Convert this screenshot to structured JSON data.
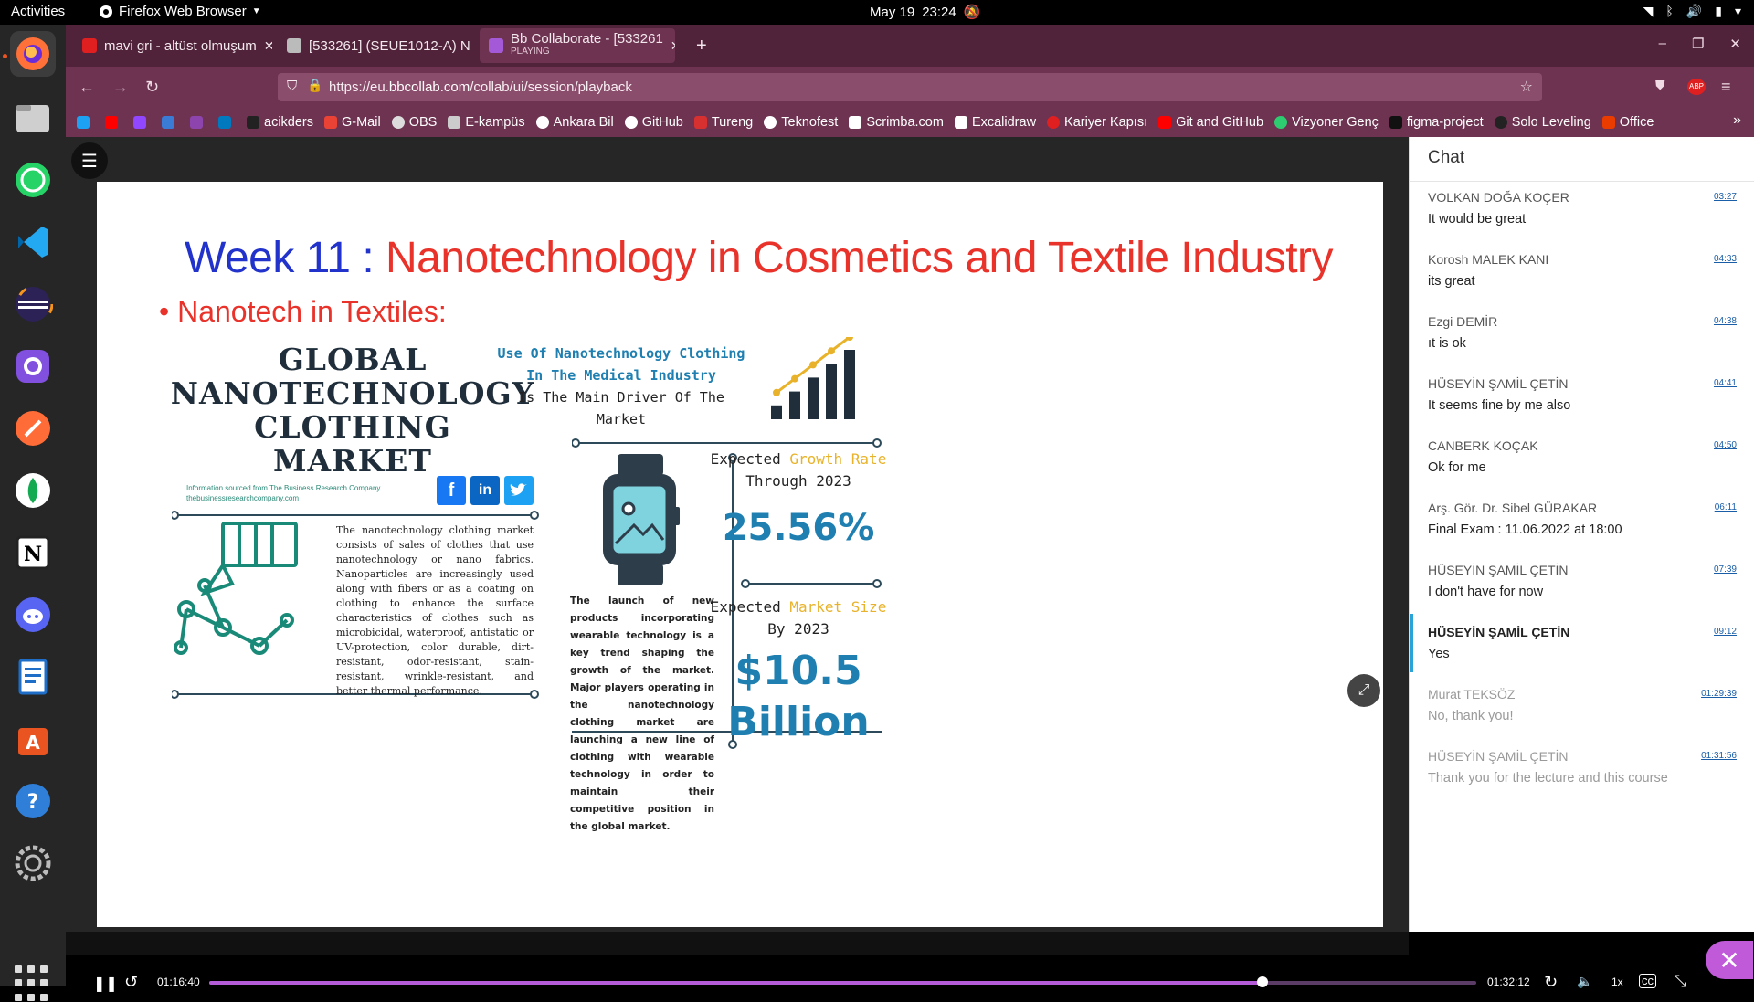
{
  "system": {
    "activities": "Activities",
    "browser_name": "Firefox Web Browser",
    "date": "May 19",
    "time": "23:24"
  },
  "tabs": [
    {
      "title": "mavi gri - altüst olmuşum",
      "color": "#e02020"
    },
    {
      "title": "[533261] (SEUE1012-A) N",
      "color": "#bbbbbb"
    },
    {
      "title": "Bb Collaborate - [533261",
      "subtitle": "PLAYING",
      "color": "#a45ad8"
    }
  ],
  "new_tab": "+",
  "url": {
    "prefix": "https://eu.",
    "domain": "bbcollab.com",
    "path": "/collab/ui/session/playback"
  },
  "bookmarks": [
    {
      "label": "",
      "color": "#1da1f2"
    },
    {
      "label": "",
      "color": "#ff0000"
    },
    {
      "label": "",
      "color": "#9146ff"
    },
    {
      "label": "",
      "color": "#3a7bd5"
    },
    {
      "label": "",
      "color": "#8e44ad"
    },
    {
      "label": "",
      "color": "#0079bf"
    },
    {
      "label": "acikders",
      "color": "#222222"
    },
    {
      "label": "G-Mail",
      "color": "#ea4335"
    },
    {
      "label": "OBS",
      "color": "#dddddd"
    },
    {
      "label": "E-kampüs",
      "color": "#cccccc"
    },
    {
      "label": "Ankara Bil",
      "color": "#ffffff"
    },
    {
      "label": "GitHub",
      "color": "#ffffff"
    },
    {
      "label": "Tureng",
      "color": "#d63031"
    },
    {
      "label": "Teknofest",
      "color": "#ffffff"
    },
    {
      "label": "Scrimba.com",
      "color": "#ffffff"
    },
    {
      "label": "Excalidraw",
      "color": "#ffffff"
    },
    {
      "label": "Kariyer Kapısı",
      "color": "#e02020"
    },
    {
      "label": "Git and GitHub",
      "color": "#ff0000"
    },
    {
      "label": "Vizyoner Genç",
      "color": "#2ecc71"
    },
    {
      "label": "figma-project",
      "color": "#111111"
    },
    {
      "label": "Solo Leveling",
      "color": "#222222"
    },
    {
      "label": "Office",
      "color": "#eb3c00"
    }
  ],
  "slide": {
    "week": "Week 11",
    "sep": " : ",
    "title": "Nanotechnology in Cosmetics and Textile Industry",
    "bullet": "Nanotech in Textiles:",
    "heading_line1": "GLOBAL",
    "heading_line2": "NANOTECHNOLOGY",
    "heading_line3": "CLOTHING MARKET",
    "source_line1": "Information sourced from The Business Research Company",
    "source_line2": "thebusinessresearchcompany.com",
    "social_fb": "f",
    "social_in": "in",
    "para1": "The nanotechnology clothing market consists of sales of clothes that use nanotechnology or nano fabrics. Nanoparticles are increasingly used along with fibers or as a coating on clothing to enhance the surface characteristics of clothes such as microbicidal, waterproof, antistatic or UV-protection, color durable, dirt-resistant, odor-resistant, stain-resistant, wrinkle-resistant, and better thermal performance.",
    "driver_line1": "Use Of Nanotechnology Clothing",
    "driver_line2": "In The Medical Industry",
    "driver_line3": "Is The Main Driver Of The Market",
    "para2": "The launch of new products incorporating wearable technology is a key trend shaping the growth of the market. Major players operating in the nanotechnology clothing market are launching a new line of clothing with wearable technology in order to maintain their competitive position in the global market.",
    "growth_pre": "Expected ",
    "growth_hl": "Growth Rate",
    "growth_post": "Through 2023",
    "growth_value": "25.56%",
    "size_pre": "Expected ",
    "size_hl": "Market Size",
    "size_post": "By 2023",
    "size_value1": "$10.5",
    "size_value2": "Billion",
    "bar_values": [
      1,
      2,
      3,
      4,
      5
    ]
  },
  "chat": {
    "title": "Chat",
    "messages": [
      {
        "author": "VOLKAN DOĞA KOÇER",
        "time": "03:27",
        "text": "It would be great"
      },
      {
        "author": "Korosh MALEK KANI",
        "time": "04:33",
        "text": "its great"
      },
      {
        "author": "Ezgi DEMİR",
        "time": "04:38",
        "text": "ıt is ok"
      },
      {
        "author": "HÜSEYİN ŞAMİL ÇETİN",
        "time": "04:41",
        "text": "It seems fine by me also"
      },
      {
        "author": "CANBERK KOÇAK",
        "time": "04:50",
        "text": "Ok for me"
      },
      {
        "author": "Arş. Gör. Dr. Sibel GÜRAKAR",
        "time": "06:11",
        "text": "Final Exam : 11.06.2022 at 18:00"
      },
      {
        "author": "HÜSEYİN ŞAMİL ÇETİN",
        "time": "07:39",
        "text": "I don't have for now"
      },
      {
        "author": "HÜSEYİN ŞAMİL ÇETİN",
        "time": "09:12",
        "text": "Yes"
      },
      {
        "author": "Murat TEKSÖZ",
        "time": "01:29:39",
        "text": "No, thank you!"
      },
      {
        "author": "HÜSEYİN ŞAMİL ÇETİN",
        "time": "01:31:56",
        "text": "Thank you for the lecture and this course"
      }
    ]
  },
  "player": {
    "current_time": "01:16:40",
    "total_time": "01:32:12",
    "speed": "1x",
    "progress": 0.8314
  }
}
